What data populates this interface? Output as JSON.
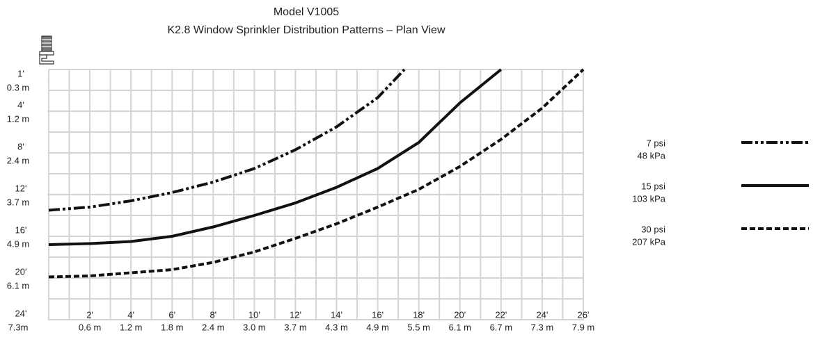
{
  "chart_data": {
    "type": "line",
    "title": "Model V1005",
    "subtitle": "K2.8 Window Sprinkler Distribution Patterns – Plan View",
    "xlim": [
      0,
      26
    ],
    "ylim": [
      0,
      24
    ],
    "xticks": [
      {
        "value": 2,
        "label": "2'",
        "metric": "0.6 m"
      },
      {
        "value": 4,
        "label": "4'",
        "metric": "1.2 m"
      },
      {
        "value": 6,
        "label": "6'",
        "metric": "1.8 m"
      },
      {
        "value": 8,
        "label": "8'",
        "metric": "2.4 m"
      },
      {
        "value": 10,
        "label": "10'",
        "metric": "3.0 m"
      },
      {
        "value": 12,
        "label": "12'",
        "metric": "3.7 m"
      },
      {
        "value": 14,
        "label": "14'",
        "metric": "4.3 m"
      },
      {
        "value": 16,
        "label": "16'",
        "metric": "4.9 m"
      },
      {
        "value": 18,
        "label": "18'",
        "metric": "5.5 m"
      },
      {
        "value": 20,
        "label": "20'",
        "metric": "6.1 m"
      },
      {
        "value": 22,
        "label": "22'",
        "metric": "6.7 m"
      },
      {
        "value": 24,
        "label": "24'",
        "metric": "7.3 m"
      },
      {
        "value": 26,
        "label": "26'",
        "metric": "7.9 m"
      }
    ],
    "yticks": [
      {
        "value": 1,
        "label": "1'",
        "metric": "0.3 m"
      },
      {
        "value": 4,
        "label": "4'",
        "metric": "1.2 m"
      },
      {
        "value": 8,
        "label": "8'",
        "metric": "2.4 m"
      },
      {
        "value": 12,
        "label": "12'",
        "metric": "3.7 m"
      },
      {
        "value": 16,
        "label": "16'",
        "metric": "4.9 m"
      },
      {
        "value": 20,
        "label": "20'",
        "metric": "6.1 m"
      },
      {
        "value": 24,
        "label": "24'",
        "metric": "7.3m"
      }
    ],
    "xgrid": [
      0,
      1,
      2,
      3,
      4,
      5,
      6,
      7,
      8,
      9,
      10,
      11,
      12,
      13,
      14,
      15,
      16,
      17,
      18,
      19,
      20,
      21,
      22,
      23,
      24,
      25,
      26
    ],
    "ygrid": [
      0,
      2,
      4,
      6,
      8,
      10,
      12,
      14,
      16,
      18,
      20,
      22,
      24
    ],
    "grid": true,
    "series": [
      {
        "name": "7 psi",
        "metric": "48 kPa",
        "color": "#111111",
        "dash": "dash-dot-dot",
        "x": [
          0,
          2,
          4,
          6,
          8,
          10,
          12,
          14,
          16,
          17.3
        ],
        "values": [
          13.5,
          13.2,
          12.6,
          11.8,
          10.8,
          9.5,
          7.7,
          5.5,
          2.7,
          0
        ]
      },
      {
        "name": "15 psi",
        "metric": "103 kPa",
        "color": "#111111",
        "dash": "solid",
        "x": [
          0,
          2,
          4,
          6,
          8,
          10,
          12,
          14,
          16,
          18,
          20,
          22
        ],
        "values": [
          16.8,
          16.7,
          16.5,
          16.0,
          15.1,
          14.0,
          12.8,
          11.3,
          9.5,
          7.0,
          3.2,
          0
        ]
      },
      {
        "name": "30 psi",
        "metric": "207 kPa",
        "color": "#111111",
        "dash": "dashed",
        "x": [
          0,
          2,
          4,
          6,
          8,
          10,
          12,
          14,
          16,
          18,
          20,
          22,
          24,
          26
        ],
        "values": [
          19.9,
          19.8,
          19.5,
          19.2,
          18.5,
          17.5,
          16.2,
          14.8,
          13.2,
          11.5,
          9.3,
          6.7,
          3.7,
          0
        ]
      }
    ]
  }
}
